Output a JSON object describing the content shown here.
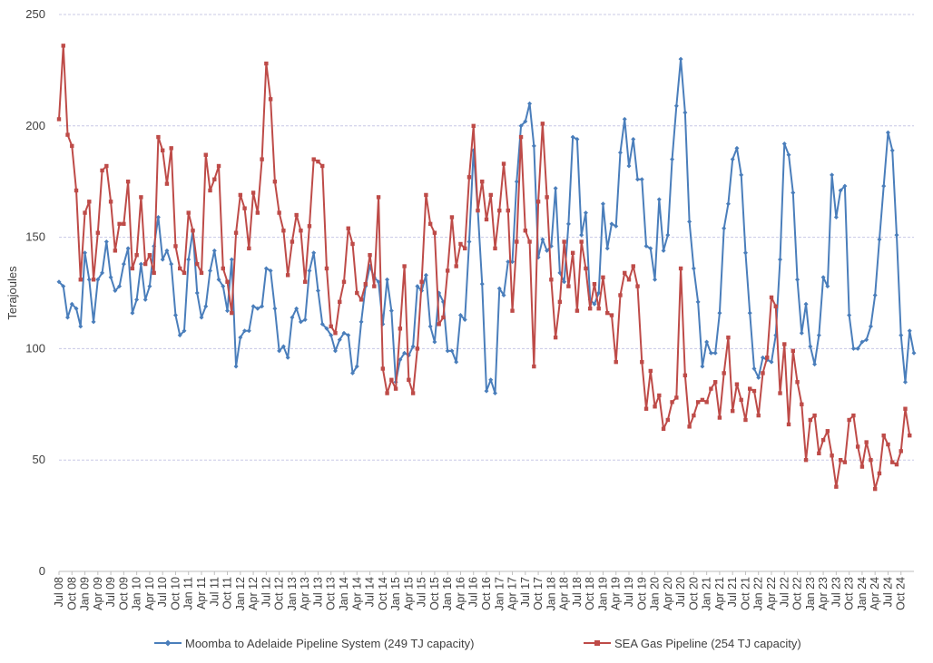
{
  "chart_data": {
    "type": "line",
    "title": "",
    "ylabel": "Terajoules",
    "xlabel": "",
    "ylim": [
      0,
      250
    ],
    "y_ticks": [
      0,
      50,
      100,
      150,
      200,
      250
    ],
    "grid": true,
    "legend_position": "bottom",
    "x_tick_labels": [
      "Jul 08",
      "Oct 08",
      "Jan 09",
      "Apr 09",
      "Jul 09",
      "Oct 09",
      "Jan 10",
      "Apr 10",
      "Jul 10",
      "Oct 10",
      "Jan 11",
      "Apr 11",
      "Jul 11",
      "Oct 11",
      "Jan 12",
      "Apr 12",
      "Jul 12",
      "Oct 12",
      "Jan 13",
      "Apr 13",
      "Jul 13",
      "Oct 13",
      "Jan 14",
      "Apr 14",
      "Jul 14",
      "Oct 14",
      "Jan 15",
      "Apr 15",
      "Jul 15",
      "Oct 15",
      "Jan 16",
      "Apr 16",
      "Jul 16",
      "Oct 16",
      "Jan 17",
      "Apr 17",
      "Jul 17",
      "Oct 17",
      "Jan 18",
      "Apr 18",
      "Jul 18",
      "Oct 18",
      "Jan 19",
      "Apr 19",
      "Jul 19",
      "Oct 19",
      "Jan 20",
      "Apr 20",
      "Jul 20",
      "Oct 20",
      "Jan 21",
      "Apr 21",
      "Jul 21",
      "Oct 21",
      "Jan 22",
      "Apr 22",
      "Jul 22",
      "Oct 22",
      "Jan 23",
      "Apr 23",
      "Jul 23",
      "Oct 23",
      "Jan 24",
      "Apr 24",
      "Jul 24",
      "Oct 24"
    ],
    "series": [
      {
        "name": "Moomba to Adelaide Pipeline System (249 TJ capacity)",
        "color": "#4a7ebb",
        "marker": "diamond",
        "values": [
          130,
          128,
          114,
          120,
          118,
          110,
          143,
          131,
          112,
          131,
          134,
          148,
          132,
          126,
          128,
          138,
          145,
          116,
          122,
          138,
          122,
          128,
          146,
          159,
          140,
          144,
          138,
          115,
          106,
          108,
          140,
          153,
          125,
          114,
          119,
          135,
          144,
          131,
          128,
          117,
          140,
          92,
          105,
          108,
          108,
          119,
          118,
          119,
          136,
          135,
          118,
          99,
          101,
          96,
          114,
          118,
          112,
          113,
          135,
          143,
          126,
          111,
          109,
          106,
          99,
          104,
          107,
          106,
          89,
          92,
          112,
          128,
          137,
          132,
          130,
          111,
          131,
          117,
          85,
          95,
          98,
          97,
          101,
          128,
          126,
          133,
          110,
          103,
          125,
          121,
          99,
          99,
          94,
          115,
          113,
          148,
          189,
          162,
          129,
          81,
          86,
          80,
          127,
          124,
          139,
          139,
          175,
          200,
          202,
          210,
          191,
          141,
          149,
          144,
          146,
          172,
          134,
          130,
          156,
          195,
          194,
          151,
          161,
          122,
          120,
          125,
          165,
          145,
          156,
          155,
          188,
          203,
          182,
          194,
          176,
          176,
          146,
          145,
          131,
          167,
          144,
          151,
          185,
          209,
          230,
          206,
          157,
          136,
          121,
          92,
          103,
          98,
          98,
          116,
          154,
          165,
          185,
          190,
          178,
          143,
          116,
          91,
          87,
          96,
          95,
          94,
          106,
          140,
          192,
          187,
          170,
          131,
          107,
          120,
          101,
          93,
          106,
          132,
          128,
          178,
          159,
          171,
          173,
          115,
          100,
          100,
          103,
          104,
          110,
          124,
          149,
          173,
          197,
          189,
          151,
          106,
          85,
          108,
          98
        ]
      },
      {
        "name": "SEA Gas Pipeline (254 TJ capacity)",
        "color": "#be4b48",
        "marker": "square",
        "values": [
          203,
          236,
          196,
          191,
          171,
          131,
          161,
          166,
          131,
          152,
          180,
          182,
          166,
          144,
          156,
          156,
          175,
          136,
          142,
          168,
          138,
          142,
          134,
          195,
          189,
          174,
          190,
          146,
          136,
          134,
          161,
          153,
          138,
          134,
          187,
          171,
          176,
          182,
          136,
          130,
          116,
          152,
          169,
          163,
          145,
          170,
          161,
          185,
          228,
          212,
          175,
          161,
          153,
          133,
          148,
          160,
          153,
          130,
          155,
          185,
          184,
          182,
          136,
          110,
          107,
          121,
          130,
          154,
          147,
          125,
          122,
          129,
          142,
          128,
          168,
          91,
          80,
          86,
          82,
          109,
          137,
          86,
          80,
          100,
          130,
          169,
          156,
          152,
          111,
          114,
          135,
          159,
          137,
          147,
          145,
          177,
          200,
          162,
          175,
          158,
          169,
          145,
          162,
          183,
          162,
          117,
          148,
          195,
          153,
          148,
          92,
          166,
          201,
          168,
          131,
          105,
          121,
          148,
          128,
          143,
          117,
          148,
          136,
          118,
          129,
          118,
          132,
          116,
          115,
          94,
          124,
          134,
          131,
          137,
          128,
          94,
          73,
          90,
          74,
          79,
          64,
          68,
          76,
          78,
          136,
          88,
          65,
          70,
          76,
          77,
          76,
          82,
          85,
          69,
          89,
          105,
          72,
          84,
          77,
          68,
          82,
          81,
          70,
          89,
          96,
          123,
          119,
          80,
          102,
          66,
          99,
          85,
          75,
          50,
          68,
          70,
          53,
          59,
          63,
          52,
          38,
          50,
          49,
          68,
          70,
          56,
          47,
          58,
          50,
          37,
          44,
          61,
          57,
          49,
          48,
          54,
          73,
          61
        ]
      }
    ]
  }
}
